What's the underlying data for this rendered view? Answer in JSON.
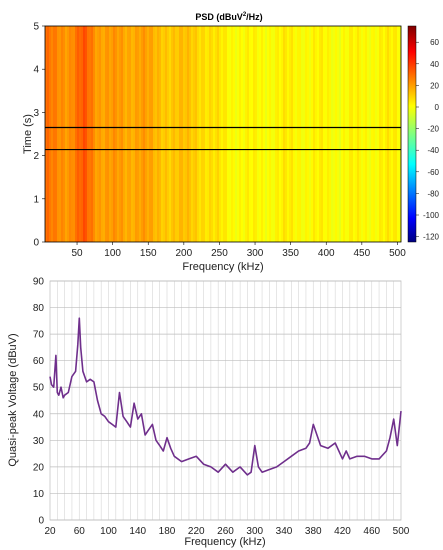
{
  "charts": [
    {
      "type": "heatmap",
      "title": "PSD (dBuV",
      "title_sup": "2",
      "title_suffix": "/Hz)",
      "xlabel": "Frequency (kHz)",
      "ylabel": "Time (s)",
      "xlim": [
        5,
        505
      ],
      "ylim": [
        0,
        5
      ],
      "xticks": [
        "50",
        "100",
        "150",
        "200",
        "250",
        "300",
        "350",
        "400",
        "450",
        "500"
      ],
      "yticks": [
        "0",
        "1",
        "2",
        "3",
        "4",
        "5"
      ],
      "colorbar": {
        "range": [
          -125,
          75
        ],
        "ticks": [
          "60",
          "40",
          "20",
          "0",
          "-20",
          "-40",
          "-60",
          "-80",
          "-100",
          "-120"
        ]
      },
      "marker_lines_time_s": [
        2.14,
        2.65
      ],
      "spectrum_profile": {
        "frequency_khz": [
          5,
          20,
          40,
          60,
          80,
          100,
          120,
          140,
          160,
          180,
          200,
          220,
          240,
          260,
          300,
          340,
          380,
          420,
          460,
          500
        ],
        "psd_dbuv2_hz": [
          26,
          24,
          22,
          32,
          20,
          19,
          17,
          20,
          13,
          12,
          11,
          10,
          5,
          2,
          0,
          2,
          1,
          0,
          1,
          2
        ]
      }
    },
    {
      "type": "line",
      "xlabel": "Frequency (kHz)",
      "ylabel": "Quasi-peak Voltage (dBuV)",
      "xlim": [
        20,
        500
      ],
      "ylim": [
        0,
        90
      ],
      "xticks": [
        "20",
        "60",
        "100",
        "140",
        "180",
        "220",
        "260",
        "300",
        "340",
        "380",
        "420",
        "460",
        "500"
      ],
      "yticks": [
        "0",
        "10",
        "20",
        "30",
        "40",
        "50",
        "60",
        "70",
        "80",
        "90"
      ],
      "grid": true,
      "color": "#6f2f8c",
      "series": [
        {
          "x": [
            20,
            22,
            25,
            28,
            30,
            32,
            35,
            38,
            40,
            45,
            50,
            55,
            58,
            60,
            62,
            65,
            70,
            75,
            80,
            85,
            90,
            95,
            100,
            105,
            110,
            115,
            120,
            125,
            130,
            135,
            140,
            145,
            150,
            155,
            160,
            165,
            170,
            175,
            180,
            185,
            190,
            200,
            210,
            220,
            230,
            240,
            250,
            260,
            270,
            280,
            290,
            295,
            300,
            305,
            310,
            320,
            330,
            340,
            350,
            360,
            370,
            375,
            380,
            390,
            400,
            410,
            420,
            425,
            430,
            440,
            450,
            460,
            470,
            480,
            485,
            490,
            495,
            500
          ],
          "y": [
            54,
            51,
            50,
            62,
            48,
            47,
            50,
            46,
            47,
            48,
            54,
            56,
            66,
            76,
            65,
            56,
            52,
            53,
            52,
            45,
            40,
            39,
            37,
            36,
            35,
            48,
            39,
            37,
            35,
            44,
            38,
            40,
            32,
            34,
            36,
            30,
            28,
            26,
            31,
            27,
            24,
            22,
            23,
            24,
            21,
            20,
            18,
            21,
            18,
            20,
            17,
            18,
            28,
            20,
            18,
            19,
            20,
            22,
            24,
            26,
            27,
            29,
            36,
            28,
            27,
            29,
            23,
            26,
            23,
            24,
            24,
            23,
            23,
            26,
            31,
            38,
            28,
            41
          ]
        }
      ]
    }
  ]
}
